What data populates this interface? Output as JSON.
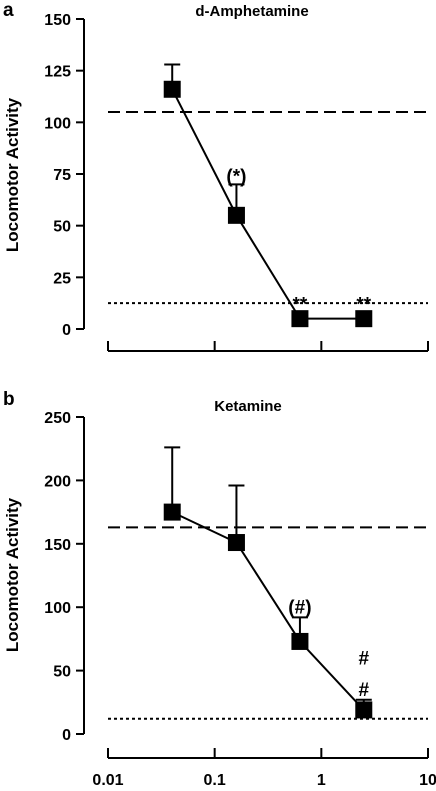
{
  "chart_data": [
    {
      "panel": "a",
      "type": "line",
      "title": "d-Amphetamine",
      "ylabel": "Locomotor Activity",
      "xlabel": "",
      "xscale": "log",
      "xlim": [
        0.01,
        10
      ],
      "ylim": [
        0,
        150
      ],
      "yticks": [
        0,
        25,
        50,
        75,
        100,
        125,
        150
      ],
      "x_tick_labels_shown": false,
      "series": [
        {
          "x": [
            0.04,
            0.16,
            0.63,
            2.5
          ],
          "y": [
            116,
            55,
            5,
            5
          ],
          "err_up": [
            12,
            15,
            0,
            0
          ]
        }
      ],
      "reference_lines": [
        {
          "style": "dashed",
          "y": 105
        },
        {
          "style": "dotted",
          "y": 12.5
        }
      ],
      "annotations": [
        {
          "x": 0.16,
          "y": 71,
          "text": "(*)"
        },
        {
          "x": 0.63,
          "y": 9,
          "text": "**"
        },
        {
          "x": 2.5,
          "y": 9,
          "text": "**"
        }
      ]
    },
    {
      "panel": "b",
      "type": "line",
      "title": "Ketamine",
      "ylabel": "Locomotor Activity",
      "xlabel": "",
      "xscale": "log",
      "xlim": [
        0.01,
        10
      ],
      "ylim": [
        0,
        250
      ],
      "yticks": [
        0,
        50,
        100,
        150,
        200,
        250
      ],
      "xtick_labels": [
        "0.01",
        "0.1",
        "1",
        "10"
      ],
      "xtick_values": [
        0.01,
        0.1,
        1,
        10
      ],
      "x_tick_labels_shown": true,
      "series": [
        {
          "x": [
            0.04,
            0.16,
            0.63,
            2.5
          ],
          "y": [
            175,
            151,
            73,
            19
          ],
          "err_up": [
            51,
            45,
            19,
            8
          ]
        }
      ],
      "reference_lines": [
        {
          "style": "dashed",
          "y": 163
        },
        {
          "style": "dotted",
          "y": 12
        }
      ],
      "annotations": [
        {
          "x": 0.63,
          "y": 95,
          "text": "(#)"
        },
        {
          "x": 2.5,
          "y": 30,
          "text": "#"
        },
        {
          "x": 2.5,
          "y": 55,
          "text": "#"
        }
      ]
    }
  ]
}
